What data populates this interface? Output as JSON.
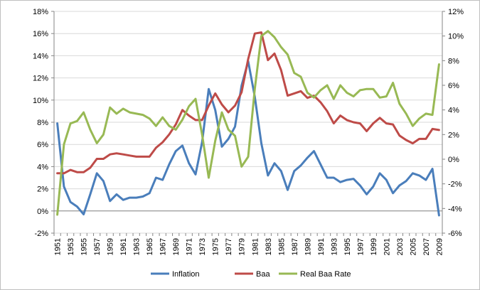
{
  "chart_data": {
    "type": "line",
    "x": [
      1951,
      1952,
      1953,
      1954,
      1955,
      1956,
      1957,
      1958,
      1959,
      1960,
      1961,
      1962,
      1963,
      1964,
      1965,
      1966,
      1967,
      1968,
      1969,
      1970,
      1971,
      1972,
      1973,
      1974,
      1975,
      1976,
      1977,
      1978,
      1979,
      1980,
      1981,
      1982,
      1983,
      1984,
      1985,
      1986,
      1987,
      1988,
      1989,
      1990,
      1991,
      1992,
      1993,
      1994,
      1995,
      1996,
      1997,
      1998,
      1999,
      2000,
      2001,
      2002,
      2003,
      2004,
      2005,
      2006,
      2007,
      2008,
      2009
    ],
    "x_tick_labels": [
      "1951",
      "1953",
      "1955",
      "1957",
      "1959",
      "1961",
      "1963",
      "1965",
      "1967",
      "1969",
      "1971",
      "1973",
      "1975",
      "1977",
      "1979",
      "1981",
      "1983",
      "1985",
      "1987",
      "1989",
      "1991",
      "1993",
      "1995",
      "1997",
      "1999",
      "2001",
      "2003",
      "2005",
      "2007",
      "2009"
    ],
    "y_left": {
      "min": -2,
      "max": 18,
      "step": 2,
      "tick_labels": [
        "-2%",
        "0%",
        "2%",
        "4%",
        "6%",
        "8%",
        "10%",
        "12%",
        "14%",
        "16%",
        "18%"
      ]
    },
    "y_right": {
      "min": -6,
      "max": 12,
      "step": 2,
      "tick_labels": [
        "-6%",
        "-4%",
        "-2%",
        "0%",
        "2%",
        "4%",
        "6%",
        "8%",
        "10%",
        "12%"
      ]
    },
    "series": [
      {
        "name": "Inflation",
        "axis": "left",
        "color": "#4a7ebb",
        "values": [
          7.9,
          2.2,
          0.8,
          0.4,
          -0.3,
          1.5,
          3.4,
          2.7,
          0.9,
          1.5,
          1.0,
          1.2,
          1.2,
          1.3,
          1.6,
          3.0,
          2.8,
          4.2,
          5.4,
          5.9,
          4.3,
          3.3,
          6.2,
          11.0,
          9.1,
          5.8,
          6.5,
          7.6,
          11.3,
          13.5,
          10.3,
          6.1,
          3.2,
          4.3,
          3.6,
          1.9,
          3.6,
          4.1,
          4.8,
          5.4,
          4.2,
          3.0,
          3.0,
          2.6,
          2.8,
          2.9,
          2.3,
          1.5,
          2.2,
          3.4,
          2.8,
          1.6,
          2.3,
          2.7,
          3.4,
          3.2,
          2.8,
          3.8,
          -0.4
        ]
      },
      {
        "name": "Baa",
        "axis": "left",
        "color": "#be4b48",
        "values": [
          3.4,
          3.4,
          3.7,
          3.5,
          3.5,
          3.9,
          4.7,
          4.7,
          5.1,
          5.2,
          5.1,
          5.0,
          4.9,
          4.9,
          4.9,
          5.7,
          6.2,
          6.9,
          7.8,
          9.1,
          8.6,
          8.2,
          8.2,
          9.5,
          10.6,
          9.6,
          8.9,
          9.5,
          10.7,
          13.7,
          16.0,
          16.1,
          13.6,
          14.2,
          12.7,
          10.4,
          10.6,
          10.8,
          10.2,
          10.4,
          9.8,
          9.0,
          7.9,
          8.6,
          8.2,
          8.0,
          7.9,
          7.2,
          7.9,
          8.4,
          7.9,
          7.8,
          6.8,
          6.4,
          6.1,
          6.5,
          6.5,
          7.4,
          7.3
        ]
      },
      {
        "name": "Real Baa Rate",
        "axis": "right",
        "color": "#98b954",
        "values": [
          -4.5,
          1.2,
          2.9,
          3.1,
          3.8,
          2.4,
          1.3,
          2.0,
          4.2,
          3.7,
          4.1,
          3.8,
          3.7,
          3.6,
          3.3,
          2.7,
          3.4,
          2.7,
          2.4,
          3.2,
          4.3,
          4.9,
          2.0,
          -1.5,
          1.5,
          3.8,
          2.4,
          1.9,
          -0.6,
          0.2,
          5.7,
          10.0,
          10.4,
          9.9,
          9.1,
          8.5,
          7.0,
          6.7,
          5.4,
          5.0,
          5.6,
          6.0,
          4.9,
          6.0,
          5.4,
          5.1,
          5.6,
          5.7,
          5.7,
          5.0,
          5.1,
          6.2,
          4.5,
          3.7,
          2.7,
          3.3,
          3.7,
          3.6,
          7.7
        ]
      }
    ],
    "legend": {
      "position": "bottom",
      "items": [
        "Inflation",
        "Baa",
        "Real Baa Rate"
      ]
    },
    "grid": true
  }
}
